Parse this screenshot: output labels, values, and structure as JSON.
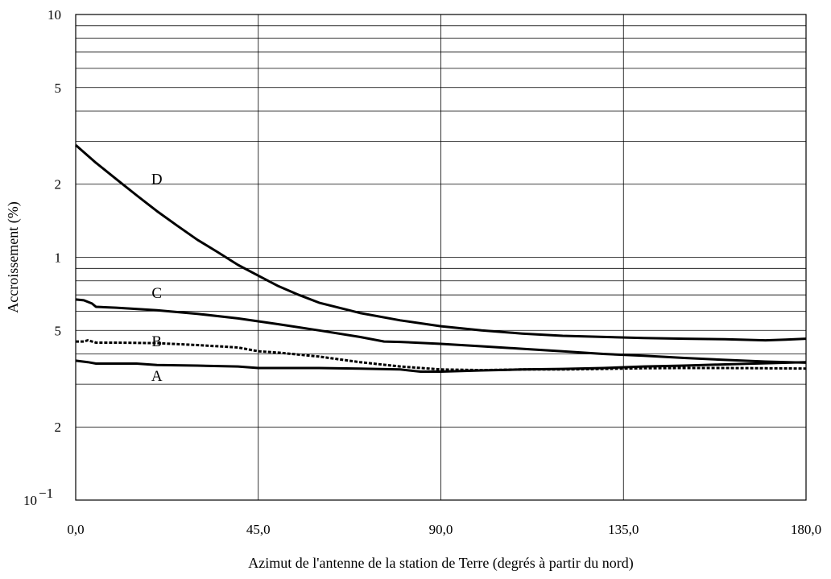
{
  "chart_data": {
    "type": "line",
    "xlabel": "Azimut de l'antenne de la station de Terre (degrés à partir du nord)",
    "ylabel": "Accroissement (%)",
    "xlim": [
      0,
      180
    ],
    "ylim": [
      0.1,
      10
    ],
    "yscale": "log",
    "grid": true,
    "x_ticks": [
      0,
      45,
      90,
      135,
      180
    ],
    "x_tick_labels": [
      "0,0",
      "45,0",
      "90,0",
      "135,0",
      "180,0"
    ],
    "y_tick_labels": [
      {
        "value": 10,
        "label": "10"
      },
      {
        "value": 5,
        "label": "5"
      },
      {
        "value": 2,
        "label": "2"
      },
      {
        "value": 1,
        "label": "1"
      },
      {
        "value": 0.5,
        "label": "5"
      },
      {
        "value": 0.2,
        "label": "2"
      },
      {
        "value": 0.1,
        "label": "10",
        "superscript": "−1"
      }
    ],
    "y_gridlines": [
      10,
      9,
      8,
      7,
      6,
      5,
      4,
      3,
      2,
      1,
      0.9,
      0.8,
      0.7,
      0.6,
      0.5,
      0.4,
      0.3,
      0.2
    ],
    "series": [
      {
        "name": "D",
        "label_at": [
          20,
          2.0
        ],
        "style": "solid",
        "x": [
          0,
          5,
          10,
          15,
          20,
          25,
          30,
          35,
          40,
          45,
          50,
          55,
          60,
          70,
          80,
          90,
          100,
          110,
          120,
          130,
          140,
          150,
          160,
          170,
          175,
          180
        ],
        "values": [
          2.9,
          2.45,
          2.1,
          1.8,
          1.55,
          1.35,
          1.18,
          1.05,
          0.93,
          0.84,
          0.76,
          0.7,
          0.65,
          0.59,
          0.55,
          0.52,
          0.5,
          0.485,
          0.475,
          0.47,
          0.465,
          0.462,
          0.46,
          0.455,
          0.458,
          0.462
        ]
      },
      {
        "name": "C",
        "label_at": [
          20,
          0.68
        ],
        "style": "solid",
        "x": [
          0,
          2,
          4,
          5,
          10,
          20,
          30,
          40,
          45,
          50,
          60,
          70,
          76,
          80,
          90,
          100,
          110,
          120,
          130,
          140,
          150,
          160,
          170,
          180
        ],
        "values": [
          0.67,
          0.665,
          0.645,
          0.625,
          0.62,
          0.605,
          0.585,
          0.56,
          0.545,
          0.53,
          0.5,
          0.47,
          0.45,
          0.448,
          0.44,
          0.43,
          0.42,
          0.41,
          0.4,
          0.393,
          0.385,
          0.378,
          0.372,
          0.368
        ]
      },
      {
        "name": "B",
        "label_at": [
          20,
          0.43
        ],
        "style": "dotted",
        "x": [
          0,
          2,
          3,
          5,
          10,
          20,
          30,
          40,
          45,
          50,
          60,
          70,
          80,
          90,
          100,
          110,
          120,
          130,
          140,
          150,
          160,
          170,
          180
        ],
        "values": [
          0.45,
          0.45,
          0.455,
          0.445,
          0.445,
          0.443,
          0.435,
          0.425,
          0.41,
          0.405,
          0.39,
          0.37,
          0.355,
          0.345,
          0.343,
          0.345,
          0.345,
          0.347,
          0.349,
          0.35,
          0.35,
          0.349,
          0.348
        ]
      },
      {
        "name": "A",
        "label_at": [
          20,
          0.31
        ],
        "style": "solid",
        "x": [
          0,
          3,
          5,
          10,
          15,
          20,
          30,
          40,
          45,
          50,
          60,
          70,
          80,
          85,
          90,
          100,
          110,
          120,
          130,
          140,
          150,
          160,
          170,
          180
        ],
        "values": [
          0.375,
          0.37,
          0.365,
          0.365,
          0.365,
          0.36,
          0.358,
          0.355,
          0.35,
          0.35,
          0.35,
          0.348,
          0.345,
          0.338,
          0.338,
          0.342,
          0.345,
          0.347,
          0.35,
          0.355,
          0.358,
          0.362,
          0.366,
          0.37
        ]
      }
    ]
  }
}
